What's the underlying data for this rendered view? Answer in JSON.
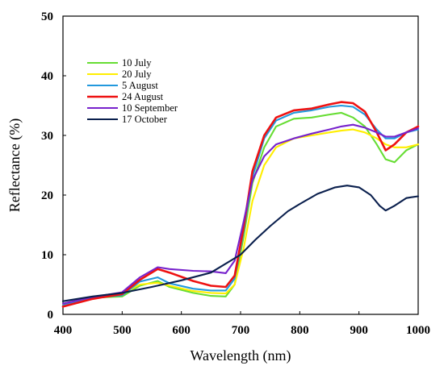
{
  "chart_data": {
    "type": "line",
    "title": "",
    "xlabel": "Wavelength (nm)",
    "ylabel": "Reflectance (%)",
    "xlim": [
      400,
      1000
    ],
    "ylim": [
      0,
      50
    ],
    "xticks": [
      400,
      500,
      600,
      700,
      800,
      900,
      1000
    ],
    "yticks": [
      0,
      10,
      20,
      30,
      40,
      50
    ],
    "grid": false,
    "legend_position": "upper-left",
    "series": [
      {
        "name": "10 July",
        "color": "#66dd33",
        "x": [
          400,
          450,
          500,
          530,
          560,
          580,
          620,
          650,
          675,
          690,
          705,
          720,
          740,
          760,
          790,
          820,
          850,
          870,
          890,
          910,
          930,
          945,
          960,
          980,
          1000
        ],
        "y": [
          1.5,
          2.8,
          3.0,
          4.8,
          5.6,
          4.6,
          3.6,
          3.1,
          3.0,
          5.0,
          13.0,
          22.0,
          28.0,
          31.5,
          32.8,
          33.0,
          33.5,
          33.8,
          33.0,
          31.5,
          28.5,
          26.0,
          25.5,
          27.5,
          28.5
        ]
      },
      {
        "name": "20 July",
        "color": "#ffee00",
        "x": [
          400,
          450,
          500,
          530,
          560,
          580,
          620,
          650,
          675,
          690,
          705,
          720,
          740,
          760,
          790,
          820,
          850,
          870,
          890,
          910,
          930,
          945,
          960,
          980,
          1000
        ],
        "y": [
          1.6,
          2.6,
          3.5,
          5.0,
          5.3,
          4.8,
          3.9,
          3.6,
          3.5,
          5.0,
          11.0,
          19.0,
          25.0,
          28.0,
          29.5,
          30.0,
          30.5,
          30.8,
          31.0,
          30.5,
          29.5,
          28.5,
          28.0,
          28.0,
          28.5
        ]
      },
      {
        "name": "5 August",
        "color": "#2299dd",
        "x": [
          400,
          450,
          500,
          530,
          560,
          580,
          620,
          650,
          675,
          690,
          705,
          720,
          740,
          760,
          790,
          820,
          850,
          870,
          890,
          910,
          930,
          945,
          960,
          980,
          1000
        ],
        "y": [
          1.5,
          2.8,
          3.2,
          5.5,
          6.2,
          5.2,
          4.3,
          4.0,
          4.0,
          6.0,
          14.0,
          23.0,
          29.5,
          32.5,
          33.8,
          34.2,
          34.8,
          35.0,
          34.8,
          33.5,
          31.0,
          29.5,
          29.5,
          30.5,
          31.0
        ]
      },
      {
        "name": "24 August",
        "color": "#ee1111",
        "x": [
          400,
          450,
          500,
          530,
          560,
          580,
          620,
          650,
          675,
          690,
          705,
          720,
          740,
          760,
          790,
          820,
          850,
          870,
          890,
          910,
          930,
          945,
          960,
          980,
          1000
        ],
        "y": [
          1.3,
          2.6,
          3.4,
          5.8,
          7.6,
          7.0,
          5.6,
          4.8,
          4.6,
          6.5,
          14.5,
          24.0,
          30.0,
          33.0,
          34.2,
          34.5,
          35.2,
          35.6,
          35.4,
          34.0,
          30.5,
          27.5,
          28.5,
          30.5,
          31.5
        ]
      },
      {
        "name": "10 September",
        "color": "#7722cc",
        "x": [
          400,
          450,
          500,
          530,
          560,
          580,
          620,
          650,
          675,
          690,
          705,
          720,
          740,
          760,
          790,
          820,
          850,
          870,
          890,
          910,
          930,
          945,
          960,
          980,
          1000
        ],
        "y": [
          1.8,
          2.9,
          3.7,
          6.2,
          7.9,
          7.6,
          7.3,
          7.2,
          6.9,
          9.0,
          15.5,
          22.5,
          26.5,
          28.5,
          29.5,
          30.3,
          31.0,
          31.5,
          31.8,
          31.3,
          30.5,
          29.8,
          29.8,
          30.5,
          31.2
        ]
      },
      {
        "name": "17 October",
        "color": "#0a1f4d",
        "x": [
          400,
          450,
          500,
          550,
          600,
          650,
          700,
          725,
          750,
          780,
          800,
          830,
          860,
          880,
          900,
          920,
          935,
          945,
          960,
          980,
          1000
        ],
        "y": [
          2.2,
          3.0,
          3.6,
          4.6,
          5.7,
          7.0,
          10.0,
          12.5,
          14.8,
          17.3,
          18.5,
          20.2,
          21.3,
          21.6,
          21.3,
          20.0,
          18.2,
          17.4,
          18.2,
          19.5,
          19.8
        ]
      }
    ]
  }
}
